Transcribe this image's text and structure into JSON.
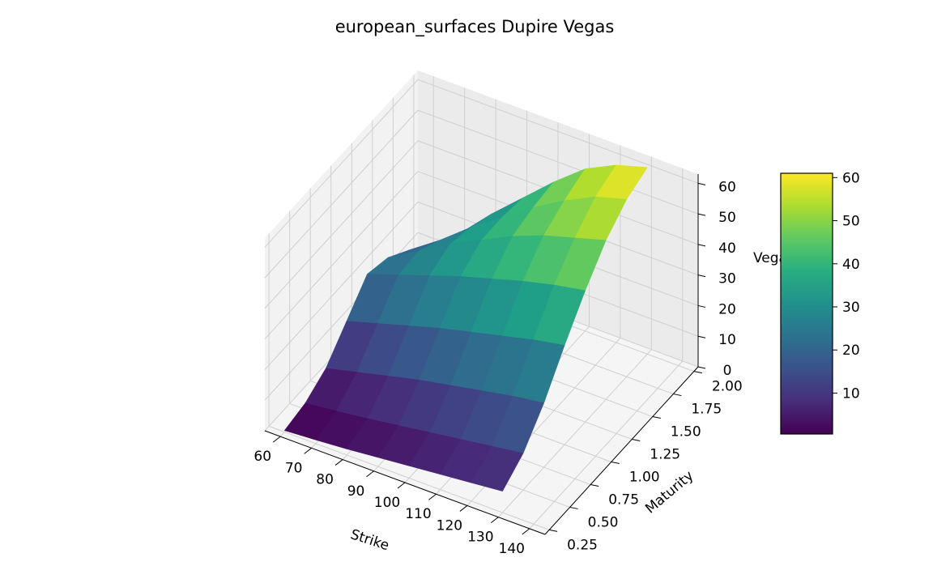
{
  "chart_data": {
    "type": "surface3d",
    "title": "european_surfaces Dupire Vegas",
    "xlabel": "Strike",
    "ylabel": "Maturity",
    "zlabel": "Vega",
    "x_ticks": [
      "60",
      "70",
      "80",
      "90",
      "100",
      "110",
      "120",
      "130",
      "140"
    ],
    "y_ticks": [
      "0.25",
      "0.50",
      "0.75",
      "1.00",
      "1.25",
      "1.50",
      "1.75",
      "2.00"
    ],
    "z_ticks": [
      "0",
      "10",
      "20",
      "30",
      "40",
      "50",
      "60"
    ],
    "colorbar_ticks": [
      "10",
      "20",
      "30",
      "40",
      "50",
      "60"
    ],
    "colormap": "viridis",
    "grid": true,
    "xlim": [
      55,
      145
    ],
    "ylim": [
      0.2,
      2.05
    ],
    "zlim": [
      0,
      63
    ],
    "strikes": [
      60,
      70,
      80,
      90,
      100,
      110,
      120,
      130
    ],
    "maturities": [
      0.25,
      0.5,
      0.75,
      1.0,
      1.25,
      1.5,
      1.75,
      2.0
    ],
    "vega": [
      [
        0.5,
        1.2,
        2.0,
        3.0,
        4.0,
        5.0,
        6.0,
        7.0
      ],
      [
        2.0,
        3.2,
        4.5,
        6.0,
        7.5,
        9.0,
        10.5,
        12.0
      ],
      [
        6.0,
        8.5,
        11.0,
        13.5,
        15.5,
        17.5,
        19.5,
        21.0
      ],
      [
        14.0,
        17.0,
        20.0,
        23.0,
        25.5,
        28.0,
        30.5,
        32.5
      ],
      [
        22.0,
        25.5,
        29.0,
        32.5,
        35.5,
        38.5,
        41.0,
        43.0
      ],
      [
        20.0,
        26.0,
        32.0,
        37.0,
        42.0,
        46.0,
        49.0,
        52.0
      ],
      [
        15.0,
        22.0,
        30.0,
        37.0,
        44.0,
        50.0,
        55.0,
        58.0
      ],
      [
        8.0,
        17.0,
        27.0,
        36.0,
        45.0,
        53.0,
        58.0,
        61.0
      ]
    ],
    "vmin": 0.5,
    "vmax": 61
  }
}
